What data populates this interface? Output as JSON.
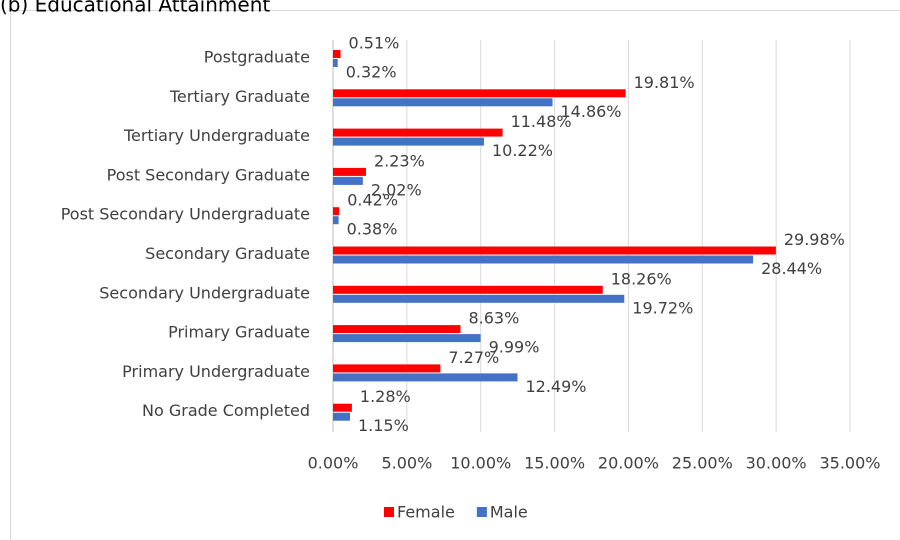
{
  "chart_data": {
    "type": "bar",
    "orientation": "horizontal",
    "title": "(b) Educational Attainment",
    "categories": [
      "Postgraduate",
      "Tertiary Graduate",
      "Tertiary Undergraduate",
      "Post Secondary Graduate",
      "Post Secondary Undergraduate",
      "Secondary Graduate",
      "Secondary Undergraduate",
      "Primary Graduate",
      "Primary Undergraduate",
      "No Grade Completed"
    ],
    "series": [
      {
        "name": "Female",
        "color": "#ff0000",
        "values": [
          0.51,
          19.81,
          11.48,
          2.23,
          0.42,
          29.98,
          18.26,
          8.63,
          7.27,
          1.28
        ],
        "value_labels": [
          "0.51%",
          "19.81%",
          "11.48%",
          "2.23%",
          "0.42%",
          "29.98%",
          "18.26%",
          "8.63%",
          "7.27%",
          "1.28%"
        ]
      },
      {
        "name": "Male",
        "color": "#4472c4",
        "values": [
          0.32,
          14.86,
          10.22,
          2.02,
          0.38,
          28.44,
          19.72,
          9.99,
          12.49,
          1.15
        ],
        "value_labels": [
          "0.32%",
          "14.86%",
          "10.22%",
          "2.02%",
          "0.38%",
          "28.44%",
          "19.72%",
          "9.99%",
          "12.49%",
          "1.15%"
        ]
      }
    ],
    "xlim": [
      0,
      35
    ],
    "xticks": [
      {
        "value": 0,
        "label": "0.00%"
      },
      {
        "value": 5,
        "label": "5.00%"
      },
      {
        "value": 10,
        "label": "10.00%"
      },
      {
        "value": 15,
        "label": "15.00%"
      },
      {
        "value": 20,
        "label": "20.00%"
      },
      {
        "value": 25,
        "label": "25.00%"
      },
      {
        "value": 30,
        "label": "30.00%"
      },
      {
        "value": 35,
        "label": "35.00%"
      }
    ],
    "grid": true,
    "legend": "bottom"
  }
}
